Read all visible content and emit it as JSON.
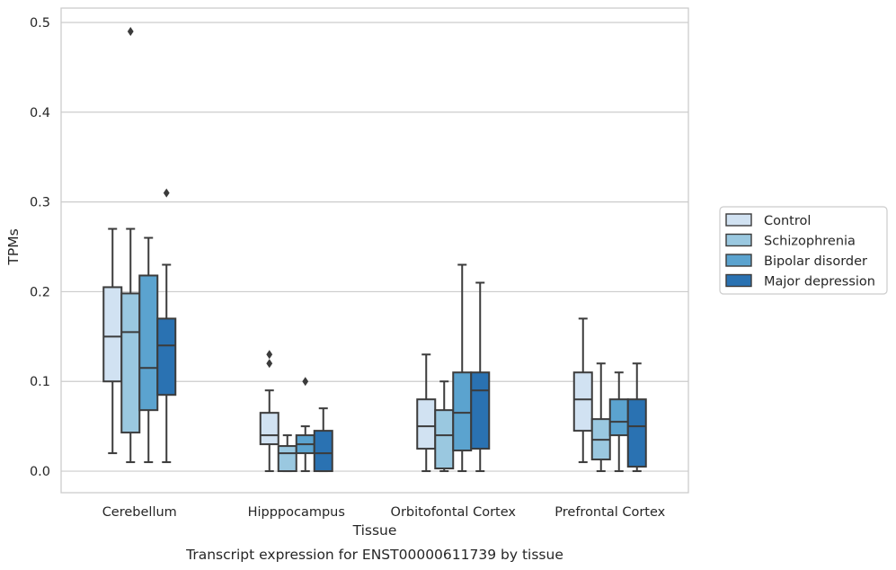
{
  "chart_data": {
    "type": "box",
    "title": "",
    "caption": "Transcript expression for ENST00000611739 by tissue",
    "xlabel": "Tissue",
    "ylabel": "TPMs",
    "ylim": [
      -0.024,
      0.516
    ],
    "yticks": [
      0.0,
      0.1,
      0.2,
      0.3,
      0.4,
      0.5
    ],
    "ytick_labels": [
      "0.0",
      "0.1",
      "0.2",
      "0.3",
      "0.4",
      "0.5"
    ],
    "grid": "horizontal",
    "legend_position": "right, outside",
    "categories": [
      "Cerebellum",
      "Hipppocampus",
      "Orbitofontal Cortex",
      "Prefrontal Cortex"
    ],
    "series": [
      {
        "name": "Control",
        "color": "#d1e2f2",
        "boxes": [
          {
            "whislo": 0.02,
            "q1": 0.1,
            "med": 0.15,
            "q3": 0.205,
            "whishi": 0.27,
            "fliers": []
          },
          {
            "whislo": 0.0,
            "q1": 0.03,
            "med": 0.04,
            "q3": 0.065,
            "whishi": 0.09,
            "fliers": [
              0.12,
              0.13
            ]
          },
          {
            "whislo": 0.0,
            "q1": 0.025,
            "med": 0.05,
            "q3": 0.08,
            "whishi": 0.13,
            "fliers": []
          },
          {
            "whislo": 0.01,
            "q1": 0.045,
            "med": 0.08,
            "q3": 0.11,
            "whishi": 0.17,
            "fliers": []
          }
        ]
      },
      {
        "name": "Schizophrenia",
        "color": "#9ac8e0",
        "boxes": [
          {
            "whislo": 0.01,
            "q1": 0.043,
            "med": 0.155,
            "q3": 0.198,
            "whishi": 0.27,
            "fliers": [
              0.49
            ]
          },
          {
            "whislo": 0.0,
            "q1": 0.0,
            "med": 0.02,
            "q3": 0.028,
            "whishi": 0.04,
            "fliers": []
          },
          {
            "whislo": 0.0,
            "q1": 0.003,
            "med": 0.04,
            "q3": 0.068,
            "whishi": 0.1,
            "fliers": []
          },
          {
            "whislo": 0.0,
            "q1": 0.013,
            "med": 0.035,
            "q3": 0.058,
            "whishi": 0.12,
            "fliers": []
          }
        ]
      },
      {
        "name": "Bipolar disorder",
        "color": "#5ba3cf",
        "boxes": [
          {
            "whislo": 0.01,
            "q1": 0.068,
            "med": 0.115,
            "q3": 0.218,
            "whishi": 0.26,
            "fliers": []
          },
          {
            "whislo": 0.0,
            "q1": 0.02,
            "med": 0.03,
            "q3": 0.04,
            "whishi": 0.05,
            "fliers": [
              0.1
            ]
          },
          {
            "whislo": 0.0,
            "q1": 0.023,
            "med": 0.065,
            "q3": 0.11,
            "whishi": 0.23,
            "fliers": []
          },
          {
            "whislo": 0.0,
            "q1": 0.04,
            "med": 0.055,
            "q3": 0.08,
            "whishi": 0.11,
            "fliers": []
          }
        ]
      },
      {
        "name": "Major depression",
        "color": "#2a72b2",
        "boxes": [
          {
            "whislo": 0.01,
            "q1": 0.085,
            "med": 0.14,
            "q3": 0.17,
            "whishi": 0.23,
            "fliers": [
              0.31
            ]
          },
          {
            "whislo": 0.0,
            "q1": 0.0,
            "med": 0.02,
            "q3": 0.045,
            "whishi": 0.07,
            "fliers": []
          },
          {
            "whislo": 0.0,
            "q1": 0.025,
            "med": 0.09,
            "q3": 0.11,
            "whishi": 0.21,
            "fliers": []
          },
          {
            "whislo": 0.0,
            "q1": 0.005,
            "med": 0.05,
            "q3": 0.08,
            "whishi": 0.12,
            "fliers": []
          }
        ]
      }
    ]
  }
}
